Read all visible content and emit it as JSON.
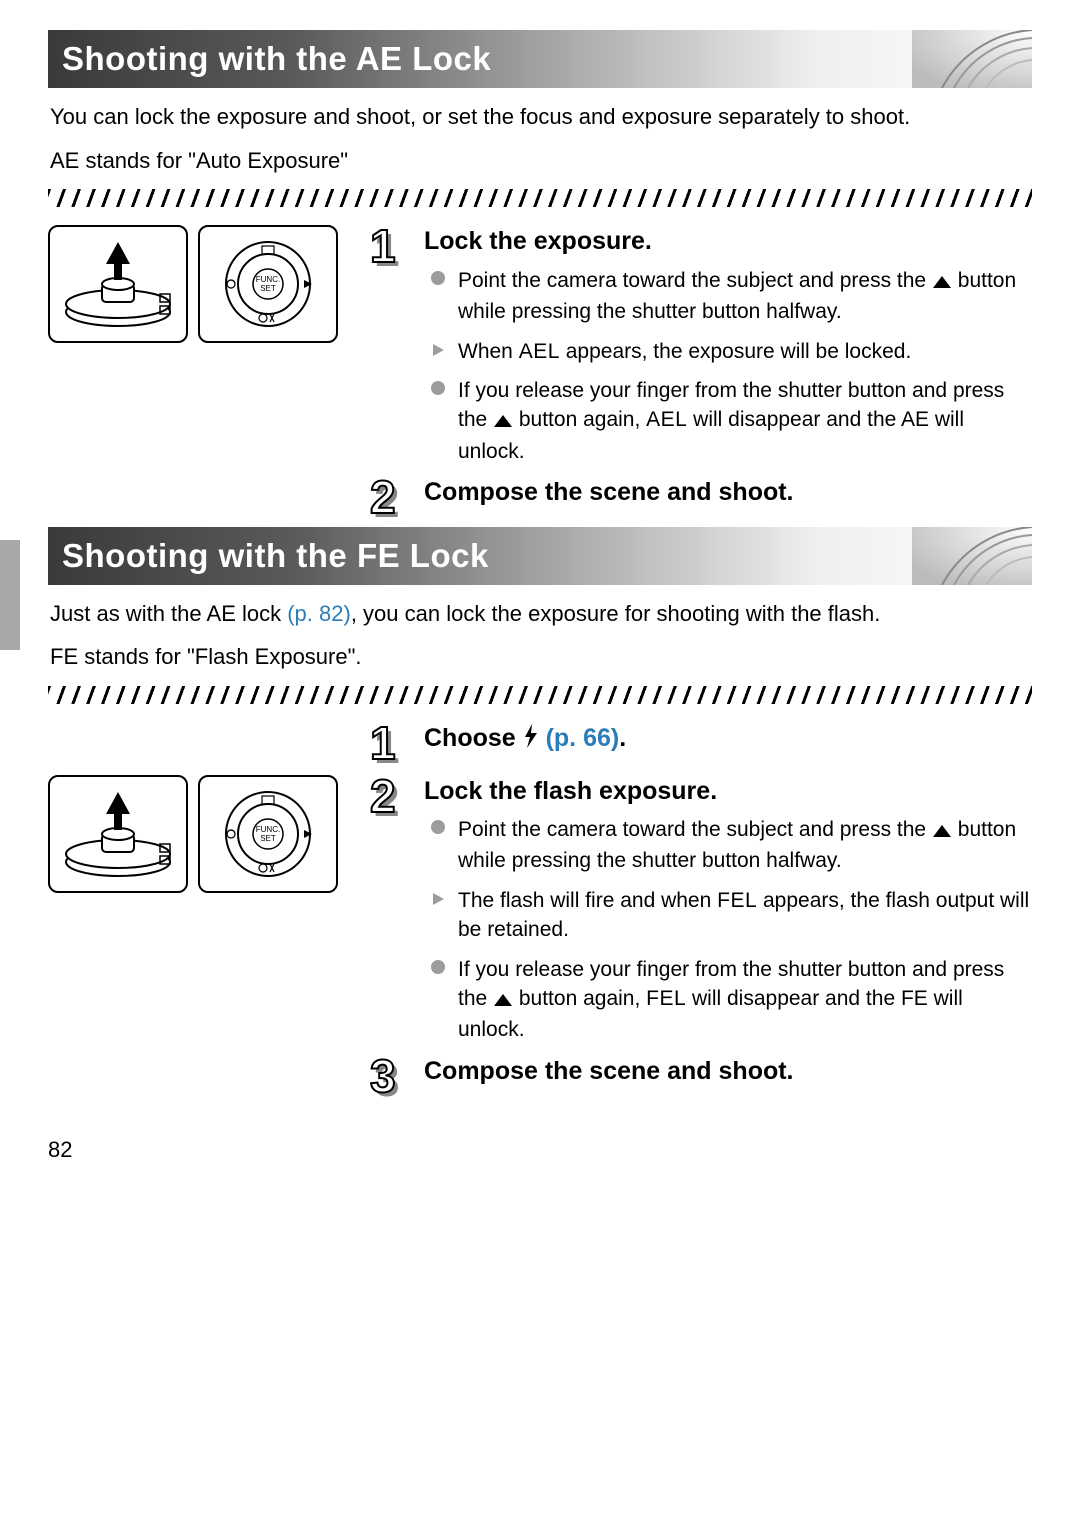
{
  "page_number": "82",
  "sections": [
    {
      "title": "Shooting with the AE Lock",
      "intro_lines": [
        "You can lock the exposure and shoot, or set the focus and exposure separately to shoot.",
        "AE stands for \"Auto Exposure\""
      ],
      "has_illustration": true,
      "steps": [
        {
          "num": "1",
          "title_parts": [
            {
              "t": "Lock the exposure."
            }
          ],
          "bullets": [
            {
              "kind": "circle",
              "parts": [
                {
                  "t": "Point the camera toward the subject and press the "
                },
                {
                  "icon": "up"
                },
                {
                  "t": " button while pressing the shutter button halfway."
                }
              ]
            },
            {
              "kind": "tri",
              "parts": [
                {
                  "t": "When "
                },
                {
                  "sym": "AEL"
                },
                {
                  "t": " appears, the exposure will be locked."
                }
              ]
            },
            {
              "kind": "circle",
              "parts": [
                {
                  "t": "If you release your finger from the shutter button and press the "
                },
                {
                  "icon": "up"
                },
                {
                  "t": " button again, "
                },
                {
                  "sym": "AEL"
                },
                {
                  "t": " will disappear and the AE will unlock."
                }
              ]
            }
          ]
        },
        {
          "num": "2",
          "title_parts": [
            {
              "t": "Compose the scene and shoot."
            }
          ],
          "bullets": []
        }
      ]
    },
    {
      "title": "Shooting with the FE Lock",
      "intro_rich": [
        {
          "t": "Just as with the AE lock "
        },
        {
          "ref": "(p. 82)"
        },
        {
          "t": ", you can lock the exposure for shooting with the flash."
        }
      ],
      "intro_lines_extra": [
        "FE stands for \"Flash Exposure\"."
      ],
      "has_illustration": true,
      "steps": [
        {
          "num": "1",
          "title_parts": [
            {
              "t": "Choose "
            },
            {
              "icon": "flash"
            },
            {
              "t": " "
            },
            {
              "ref": "(p. 66)"
            },
            {
              "t": "."
            }
          ],
          "bullets": []
        },
        {
          "num": "2",
          "title_parts": [
            {
              "t": "Lock the flash exposure."
            }
          ],
          "bullets": [
            {
              "kind": "circle",
              "parts": [
                {
                  "t": "Point the camera toward the subject and press the "
                },
                {
                  "icon": "up"
                },
                {
                  "t": " button while pressing the shutter button halfway."
                }
              ]
            },
            {
              "kind": "tri",
              "parts": [
                {
                  "t": "The flash will fire and when "
                },
                {
                  "sym": "FEL"
                },
                {
                  "t": " appears, the flash output will be retained."
                }
              ]
            },
            {
              "kind": "circle",
              "parts": [
                {
                  "t": "If you release your finger from the shutter button and press the "
                },
                {
                  "icon": "up"
                },
                {
                  "t": " button again, "
                },
                {
                  "sym": "FEL"
                },
                {
                  "t": " will disappear and the FE will unlock."
                }
              ]
            }
          ]
        },
        {
          "num": "3",
          "title_parts": [
            {
              "t": "Compose the scene and shoot."
            }
          ],
          "bullets": []
        }
      ]
    }
  ]
}
